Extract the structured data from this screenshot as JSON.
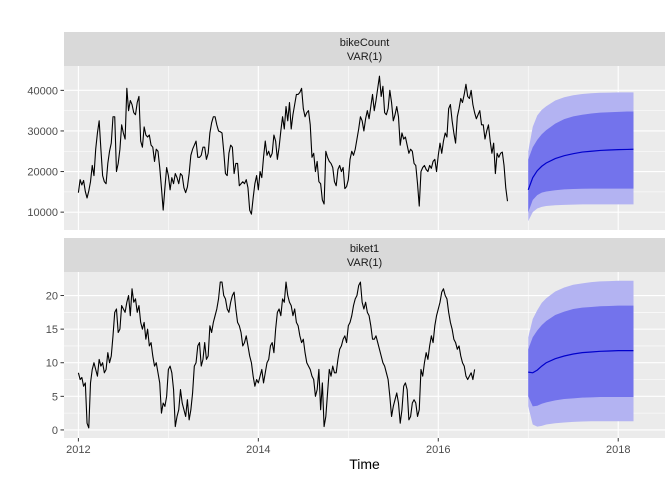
{
  "chart_data": {
    "type": "line",
    "xlabel": "Time",
    "x_ticks": [
      2012,
      2014,
      2016,
      2018
    ],
    "xlim": [
      2011.84,
      2018.52
    ],
    "colors": {
      "panel_bg": "#ebebeb",
      "strip_bg": "#d9d9d9",
      "grid": "#ffffff",
      "history_line": "#000000",
      "forecast_line": "#0000cc",
      "band_95": "#b3b3f2",
      "band_80": "#7373ec"
    },
    "panels": [
      {
        "strip": [
          "bikeCount",
          "VAR(1)"
        ],
        "ylim": [
          5600,
          46000
        ],
        "y_ticks": [
          10000,
          20000,
          30000,
          40000
        ],
        "y_tick_labels": [
          "10000",
          "20000",
          "30000",
          "40000"
        ],
        "history": {
          "start": 2012,
          "step": 0.019231,
          "values": [
            14800,
            18000,
            16700,
            17800,
            15100,
            13500,
            15200,
            17500,
            21500,
            19000,
            25500,
            29500,
            32500,
            25500,
            19000,
            17500,
            17000,
            22000,
            25000,
            27000,
            33500,
            33500,
            20000,
            22000,
            25500,
            31500,
            29500,
            28000,
            40500,
            35000,
            37500,
            36500,
            34500,
            34000,
            37000,
            38500,
            27500,
            26000,
            31000,
            29000,
            28500,
            29000,
            26500,
            26000,
            22500,
            25500,
            25000,
            21000,
            16000,
            10500,
            16000,
            21000,
            19000,
            15500,
            18500,
            17000,
            19500,
            18500,
            17000,
            19500,
            19000,
            16000,
            14800,
            16200,
            19500,
            24000,
            25500,
            26500,
            27500,
            23500,
            23500,
            24000,
            26000,
            26000,
            23000,
            24500,
            29500,
            32000,
            33500,
            33500,
            31500,
            30000,
            29800,
            29500,
            25000,
            19500,
            19000,
            24500,
            26500,
            26000,
            19500,
            22000,
            22000,
            16500,
            17000,
            17500,
            17000,
            18000,
            16000,
            10500,
            9500,
            13500,
            17000,
            19000,
            15500,
            20000,
            18500,
            23500,
            27500,
            24000,
            25000,
            23500,
            24500,
            29000,
            27500,
            23000,
            26000,
            30000,
            33500,
            30500,
            36000,
            32500,
            37000,
            30500,
            34000,
            36500,
            39000,
            39000,
            39500,
            40500,
            35500,
            33500,
            34500,
            35000,
            31500,
            23500,
            24500,
            20000,
            22500,
            17500,
            17000,
            13000,
            12000,
            25000,
            23500,
            22500,
            22000,
            21000,
            17500,
            16500,
            20500,
            21500,
            20000,
            21000,
            15800,
            16300,
            18000,
            23000,
            25000,
            24000,
            25500,
            28000,
            30500,
            33500,
            32500,
            30000,
            33000,
            35000,
            33000,
            36000,
            39000,
            35000,
            37500,
            40500,
            43500,
            38500,
            41000,
            34500,
            34000,
            35500,
            40000,
            37000,
            32500,
            34000,
            36000,
            33500,
            26500,
            29500,
            28000,
            28500,
            26500,
            24500,
            25500,
            25000,
            22000,
            21500,
            17000,
            11500,
            20000,
            21000,
            21500,
            20500,
            20000,
            21500,
            20800,
            22500,
            23000,
            20000,
            24000,
            27000,
            24500,
            27500,
            29500,
            28500,
            35500,
            36500,
            32500,
            29500,
            27000,
            33500,
            35500,
            38000,
            37000,
            39000,
            41500,
            38500,
            38000,
            40000,
            36500,
            34500,
            33000,
            34000,
            35000,
            31500,
            31500,
            28000,
            30000,
            31500,
            27500,
            24500,
            27000,
            19500,
            24500,
            23500,
            24500,
            24800,
            21500,
            16000,
            12700
          ]
        },
        "forecast": {
          "x": [
            2017.0,
            2017.05,
            2017.1,
            2017.15,
            2017.2,
            2017.3,
            2017.4,
            2017.5,
            2017.6,
            2017.7,
            2017.8,
            2017.9,
            2018.0,
            2018.1,
            2018.17
          ],
          "mean": [
            15500,
            18500,
            20200,
            21300,
            22100,
            23200,
            23900,
            24400,
            24800,
            25000,
            25200,
            25300,
            25400,
            25450,
            25500
          ],
          "lo80": [
            10000,
            13000,
            14200,
            14800,
            15100,
            15400,
            15600,
            15700,
            15750,
            15800,
            15800,
            15800,
            15800,
            15800,
            15800
          ],
          "hi80": [
            23000,
            26000,
            27800,
            29200,
            30200,
            31800,
            32900,
            33600,
            34000,
            34300,
            34500,
            34600,
            34700,
            34800,
            34800
          ],
          "lo95": [
            7800,
            10000,
            10900,
            11300,
            11500,
            11700,
            11800,
            11850,
            11900,
            11900,
            11900,
            11900,
            11900,
            11900,
            11900
          ],
          "hi95": [
            25000,
            31000,
            33800,
            35200,
            36100,
            37500,
            38300,
            38800,
            39100,
            39300,
            39400,
            39450,
            39500,
            39500,
            39500
          ]
        }
      },
      {
        "strip": [
          "biket1",
          "VAR(1)"
        ],
        "ylim": [
          -1.2,
          23.5
        ],
        "y_ticks": [
          0,
          5,
          10,
          15,
          20
        ],
        "y_tick_labels": [
          "0",
          "5",
          "10",
          "15",
          "20"
        ],
        "history": {
          "start": 2012,
          "step": 0.019231,
          "values": [
            8.5,
            7.5,
            7.8,
            6.5,
            7.0,
            1.0,
            0.3,
            7.0,
            9.0,
            10.0,
            9.0,
            8.0,
            10.5,
            9.5,
            10.0,
            8.5,
            9.0,
            11.5,
            10.0,
            11.0,
            14.0,
            17.5,
            18.0,
            14.5,
            15.0,
            18.5,
            18.0,
            17.5,
            19.0,
            20.0,
            17.0,
            21.0,
            19.0,
            19.5,
            17.5,
            18.5,
            16.0,
            15.0,
            16.0,
            13.5,
            15.0,
            12.5,
            13.0,
            11.0,
            9.5,
            10.0,
            8.5,
            7.0,
            2.5,
            4.0,
            3.5,
            5.0,
            9.0,
            9.5,
            8.5,
            6.0,
            0.5,
            2.0,
            3.0,
            6.0,
            4.0,
            3.0,
            2.0,
            4.5,
            1.5,
            3.0,
            5.5,
            9.5,
            10.0,
            12.5,
            13.0,
            9.5,
            10.5,
            13.0,
            10.5,
            11.0,
            15.5,
            14.5,
            16.0,
            17.0,
            18.0,
            19.5,
            22.0,
            22.0,
            20.0,
            19.5,
            18.0,
            17.5,
            19.0,
            20.0,
            20.5,
            18.0,
            16.0,
            15.5,
            14.5,
            12.5,
            13.0,
            14.0,
            12.5,
            11.0,
            10.0,
            8.0,
            6.5,
            7.5,
            7.0,
            8.0,
            9.0,
            7.0,
            8.5,
            10.0,
            10.5,
            12.5,
            13.0,
            11.5,
            15.0,
            17.5,
            18.0,
            17.0,
            19.5,
            19.0,
            22.0,
            20.0,
            19.0,
            18.5,
            17.0,
            18.0,
            16.0,
            15.5,
            14.0,
            13.0,
            13.5,
            11.5,
            10.0,
            9.5,
            9.0,
            8.0,
            7.5,
            5.0,
            6.0,
            9.0,
            3.0,
            7.0,
            0.5,
            2.0,
            5.5,
            9.0,
            8.0,
            9.5,
            8.5,
            8.5,
            10.5,
            12.0,
            12.5,
            13.5,
            14.0,
            13.0,
            15.5,
            16.0,
            17.0,
            18.5,
            19.5,
            20.0,
            21.5,
            22.0,
            19.0,
            18.0,
            19.0,
            17.5,
            17.0,
            15.5,
            13.5,
            13.5,
            14.0,
            13.0,
            12.0,
            11.0,
            10.0,
            9.5,
            8.5,
            7.5,
            5.0,
            2.0,
            3.5,
            4.5,
            5.5,
            4.0,
            1.0,
            3.0,
            6.5,
            7.0,
            6.0,
            1.5,
            2.0,
            4.0,
            4.5,
            4.0,
            2.0,
            3.0,
            9.0,
            8.0,
            10.0,
            11.5,
            10.5,
            12.5,
            14.0,
            13.0,
            15.5,
            17.0,
            18.0,
            19.0,
            20.5,
            21.0,
            20.0,
            19.5,
            17.5,
            16.0,
            15.0,
            13.5,
            13.0,
            12.0,
            12.5,
            11.0,
            10.0,
            9.5,
            8.0,
            7.5,
            8.0,
            8.5,
            7.5,
            9.0
          ]
        },
        "forecast": {
          "x": [
            2017.0,
            2017.05,
            2017.1,
            2017.15,
            2017.2,
            2017.3,
            2017.4,
            2017.5,
            2017.6,
            2017.7,
            2017.8,
            2017.9,
            2018.0,
            2018.1,
            2018.17
          ],
          "mean": [
            8.6,
            8.5,
            8.9,
            9.5,
            10.0,
            10.6,
            11.0,
            11.3,
            11.5,
            11.6,
            11.7,
            11.75,
            11.8,
            11.8,
            11.8
          ],
          "lo80": [
            5.0,
            3.5,
            3.6,
            3.9,
            4.1,
            4.4,
            4.6,
            4.7,
            4.8,
            4.85,
            4.9,
            4.9,
            4.9,
            4.9,
            4.9
          ],
          "hi80": [
            12.0,
            13.8,
            14.8,
            15.6,
            16.2,
            17.1,
            17.6,
            18.0,
            18.2,
            18.3,
            18.4,
            18.45,
            18.5,
            18.5,
            18.5
          ],
          "lo95": [
            3.5,
            0.8,
            0.5,
            0.6,
            0.8,
            1.0,
            1.1,
            1.2,
            1.25,
            1.3,
            1.3,
            1.3,
            1.3,
            1.3,
            1.3
          ],
          "hi95": [
            13.8,
            16.5,
            17.8,
            18.9,
            19.6,
            20.6,
            21.2,
            21.6,
            21.8,
            22.0,
            22.1,
            22.15,
            22.2,
            22.2,
            22.2
          ]
        }
      }
    ]
  }
}
